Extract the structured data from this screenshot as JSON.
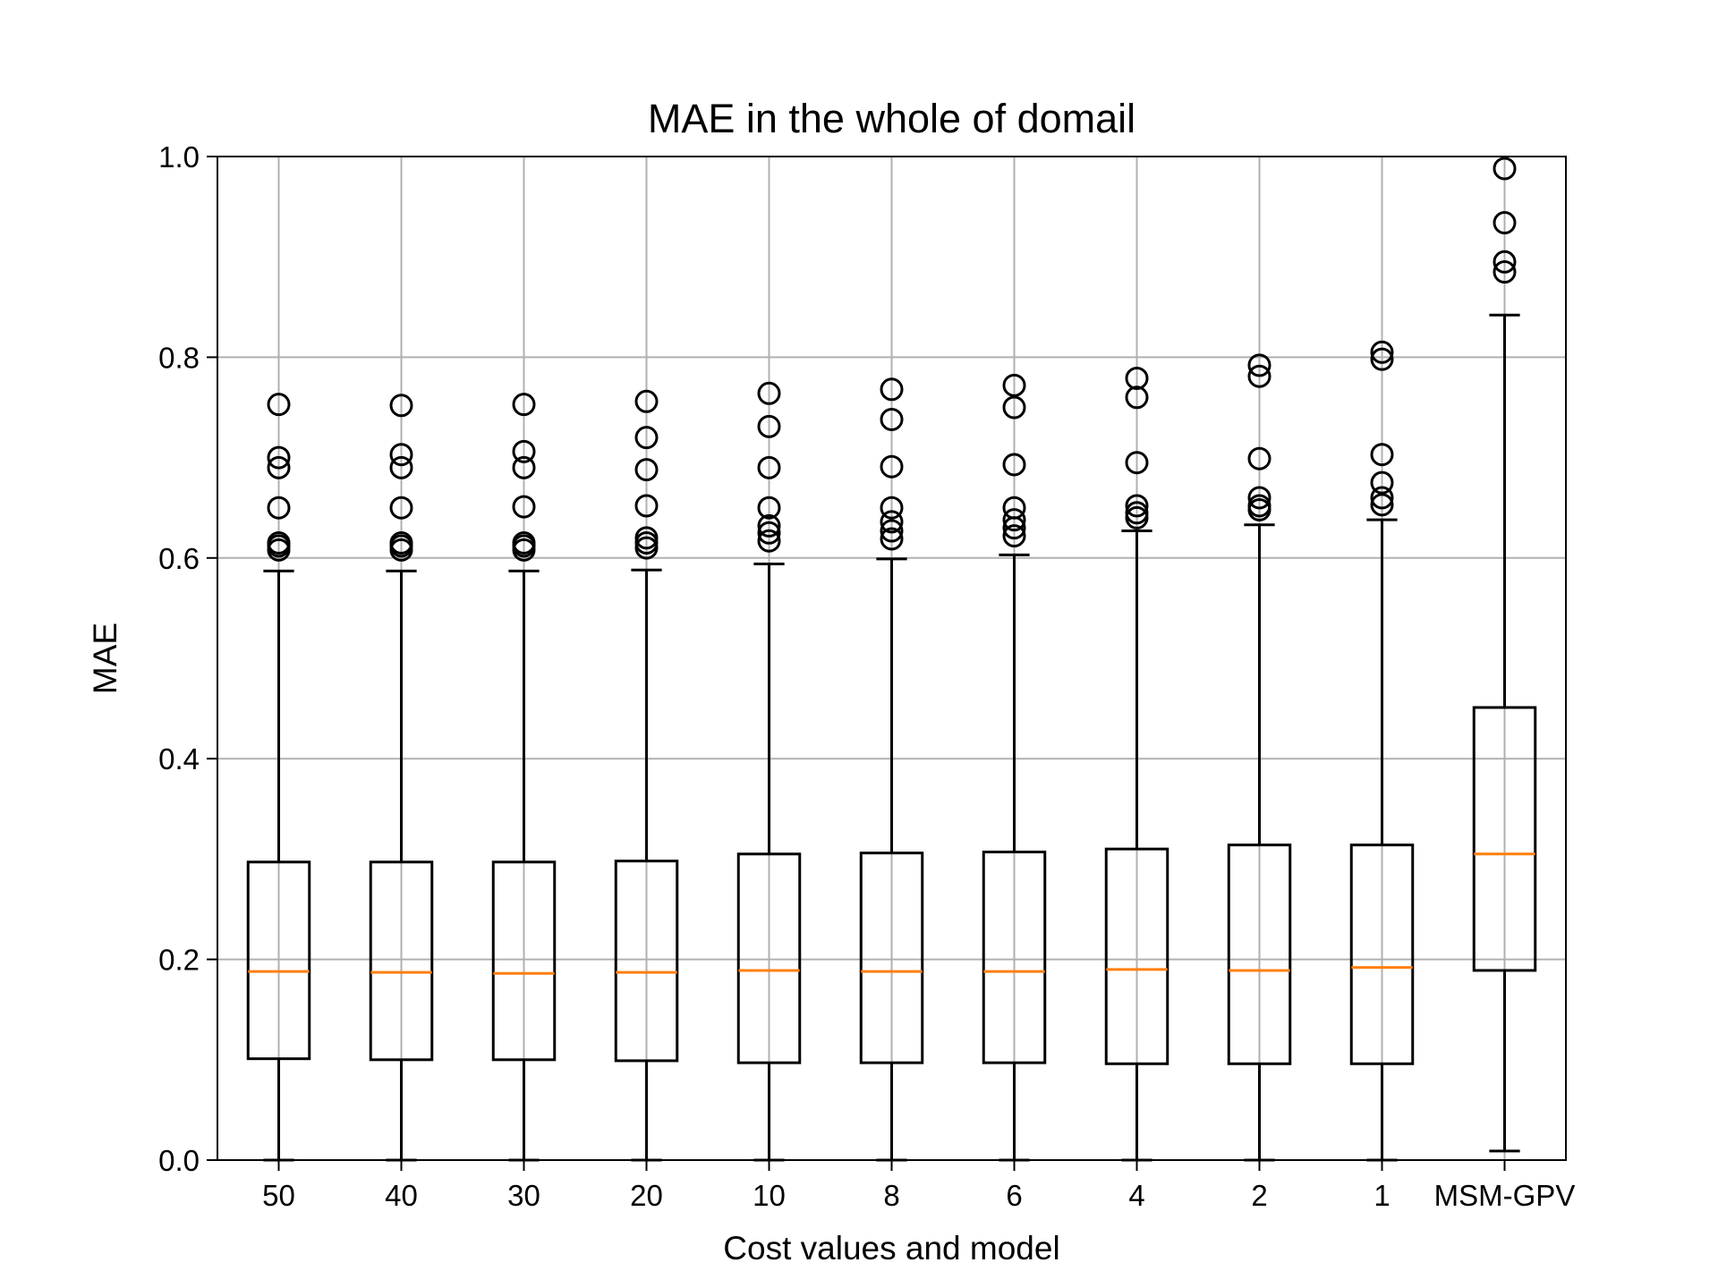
{
  "chart_data": {
    "type": "box",
    "title": "MAE in the whole of domail",
    "xlabel": "Cost values and model",
    "ylabel": "MAE",
    "ylim": [
      0.0,
      1.0
    ],
    "yticks": [
      "0.0",
      "0.2",
      "0.4",
      "0.6",
      "0.8",
      "1.0"
    ],
    "grid": true,
    "colors": {
      "box": "#000000",
      "median": "#ff7f0e",
      "grid": "#b0b0b0"
    },
    "categories": [
      "50",
      "40",
      "30",
      "20",
      "10",
      "8",
      "6",
      "4",
      "2",
      "1",
      "MSM-GPV"
    ],
    "boxes": [
      {
        "whisker_low": 0.0,
        "q1": 0.101,
        "median": 0.188,
        "q3": 0.297,
        "whisker_high": 0.587,
        "outliers": [
          0.608,
          0.612,
          0.615,
          0.65,
          0.69,
          0.7,
          0.753
        ]
      },
      {
        "whisker_low": 0.0,
        "q1": 0.1,
        "median": 0.187,
        "q3": 0.297,
        "whisker_high": 0.587,
        "outliers": [
          0.608,
          0.612,
          0.615,
          0.65,
          0.69,
          0.703,
          0.752
        ]
      },
      {
        "whisker_low": 0.0,
        "q1": 0.1,
        "median": 0.186,
        "q3": 0.297,
        "whisker_high": 0.587,
        "outliers": [
          0.608,
          0.612,
          0.615,
          0.651,
          0.69,
          0.706,
          0.753
        ]
      },
      {
        "whisker_low": 0.0,
        "q1": 0.099,
        "median": 0.187,
        "q3": 0.298,
        "whisker_high": 0.588,
        "outliers": [
          0.61,
          0.615,
          0.62,
          0.652,
          0.688,
          0.72,
          0.756
        ]
      },
      {
        "whisker_low": 0.0,
        "q1": 0.097,
        "median": 0.189,
        "q3": 0.305,
        "whisker_high": 0.594,
        "outliers": [
          0.617,
          0.625,
          0.632,
          0.65,
          0.69,
          0.731,
          0.764
        ]
      },
      {
        "whisker_low": 0.0,
        "q1": 0.097,
        "median": 0.188,
        "q3": 0.306,
        "whisker_high": 0.599,
        "outliers": [
          0.619,
          0.627,
          0.636,
          0.65,
          0.691,
          0.738,
          0.768
        ]
      },
      {
        "whisker_low": 0.0,
        "q1": 0.097,
        "median": 0.188,
        "q3": 0.307,
        "whisker_high": 0.603,
        "outliers": [
          0.622,
          0.63,
          0.638,
          0.65,
          0.693,
          0.75,
          0.772
        ]
      },
      {
        "whisker_low": 0.0,
        "q1": 0.096,
        "median": 0.19,
        "q3": 0.31,
        "whisker_high": 0.627,
        "outliers": [
          0.64,
          0.645,
          0.652,
          0.695,
          0.76,
          0.779
        ]
      },
      {
        "whisker_low": 0.0,
        "q1": 0.096,
        "median": 0.189,
        "q3": 0.314,
        "whisker_high": 0.633,
        "outliers": [
          0.648,
          0.652,
          0.66,
          0.699,
          0.781,
          0.792
        ]
      },
      {
        "whisker_low": 0.0,
        "q1": 0.096,
        "median": 0.192,
        "q3": 0.314,
        "whisker_high": 0.638,
        "outliers": [
          0.653,
          0.66,
          0.675,
          0.703,
          0.798,
          0.805
        ]
      },
      {
        "whisker_low": 0.009,
        "q1": 0.189,
        "median": 0.305,
        "q3": 0.451,
        "whisker_high": 0.842,
        "outliers": [
          0.885,
          0.895,
          0.934,
          0.988
        ]
      }
    ]
  }
}
